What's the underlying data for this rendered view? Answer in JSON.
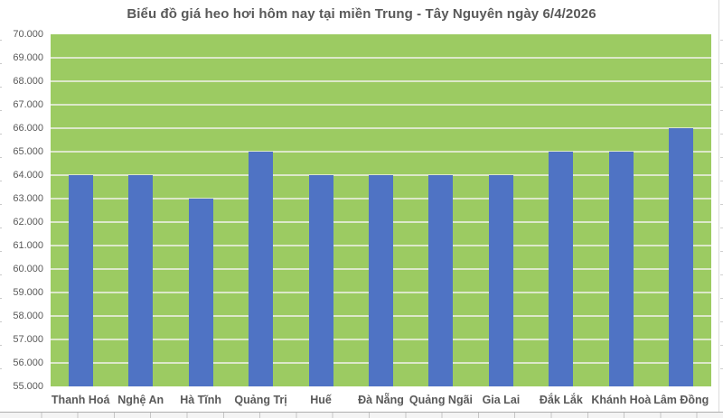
{
  "chart_data": {
    "type": "bar",
    "title": "Biểu đồ giá heo hơi hôm nay tại miền Trung - Tây Nguyên ngày 6/4/2026",
    "categories": [
      "Thanh Hoá",
      "Nghệ An",
      "Hà Tĩnh",
      "Quảng Trị",
      "Huế",
      "Đà Nẵng",
      "Quảng Ngãi",
      "Gia Lai",
      "Đắk Lắk",
      "Khánh Hoà",
      "Lâm Đồng"
    ],
    "values": [
      64000,
      64000,
      63000,
      65000,
      64000,
      64000,
      64000,
      64000,
      65000,
      65000,
      66000
    ],
    "xlabel": "",
    "ylabel": "",
    "ylim": [
      55000,
      70000
    ],
    "ytick_step": 1000,
    "ytick_labels": [
      "70.000",
      "69.000",
      "68.000",
      "67.000",
      "66.000",
      "65.000",
      "64.000",
      "63.000",
      "62.000",
      "61.000",
      "60.000",
      "59.000",
      "58.000",
      "57.000",
      "56.000",
      "55.000"
    ],
    "grid": true,
    "legend": "none",
    "colors": {
      "bar": "#4F73C4",
      "plot_bg": "#9CCB62",
      "gridline": "#DCE8C9",
      "text": "#595959"
    }
  }
}
